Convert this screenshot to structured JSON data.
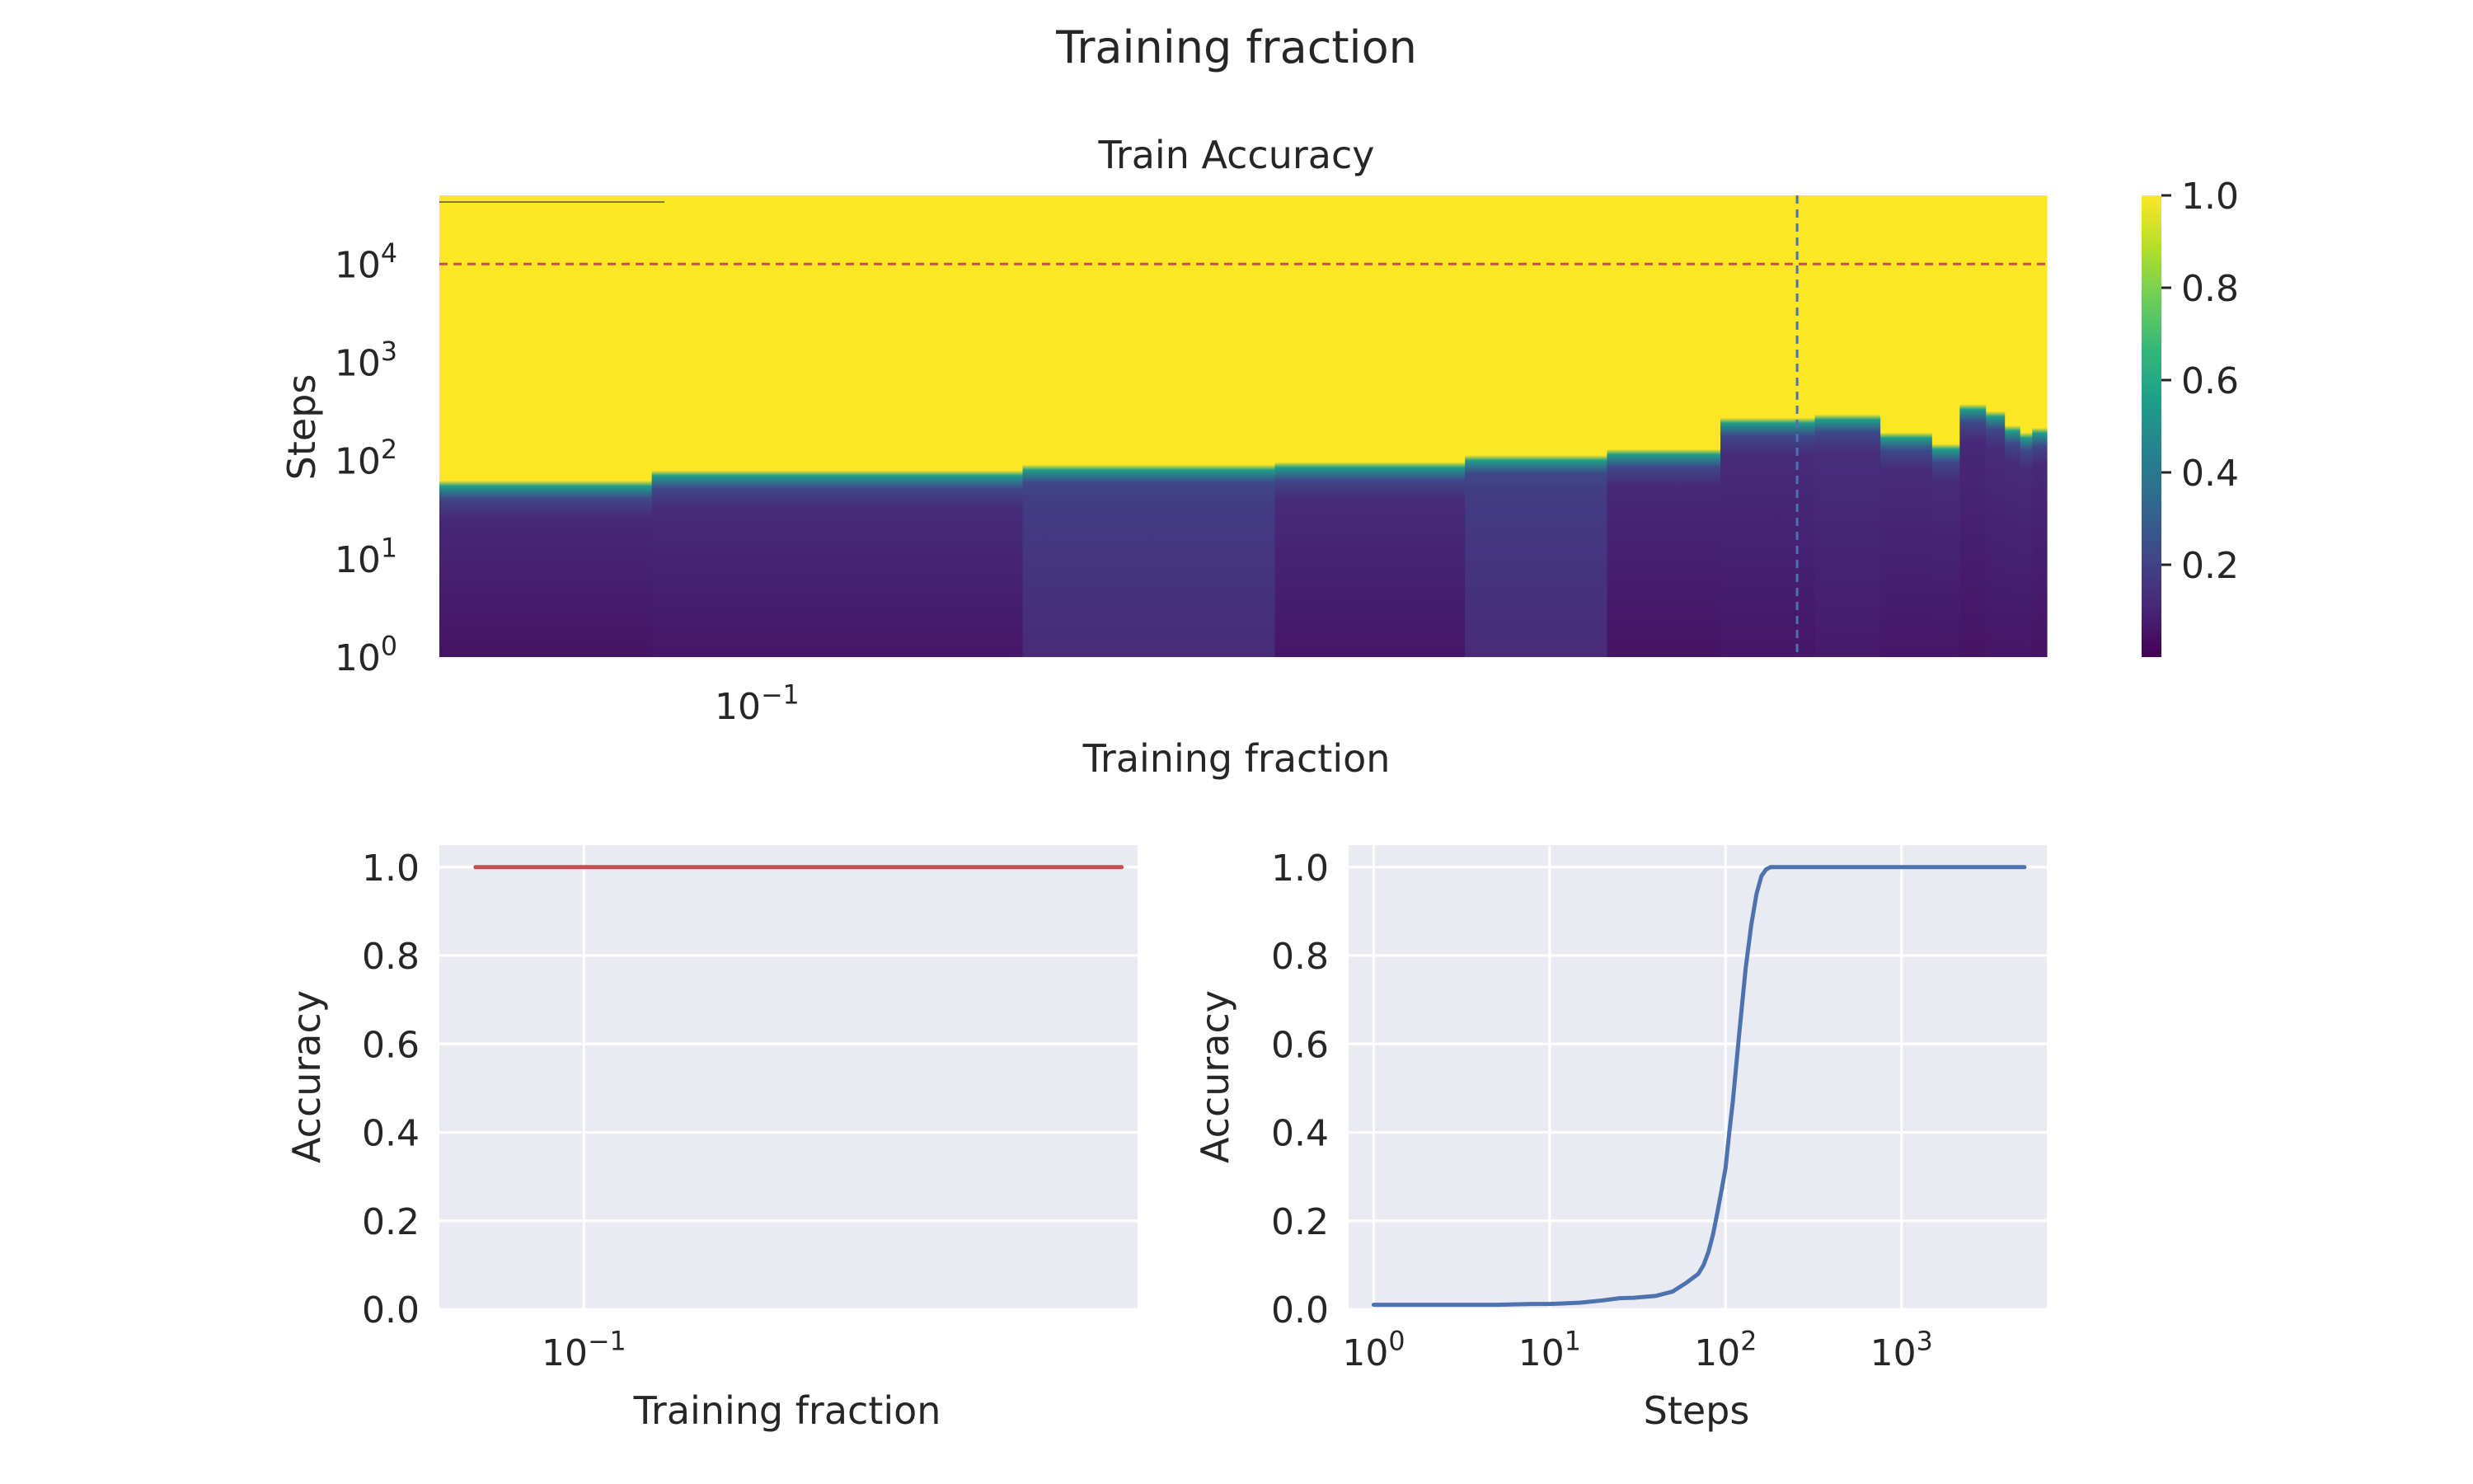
{
  "figure": {
    "suptitle": "Training fraction"
  },
  "colors": {
    "axes_face": "#eaeaf2",
    "grid": "#ffffff",
    "text": "#262626",
    "hline": "#c44e52",
    "vline": "#4c72b0",
    "line_red": "#c44e52",
    "line_blue": "#4c72b0",
    "viridis": [
      "#440154",
      "#482878",
      "#3e4989",
      "#31688e",
      "#26828e",
      "#1f9e89",
      "#35b779",
      "#6ece58",
      "#b5de2b",
      "#fde725"
    ]
  },
  "chart_data": [
    {
      "type": "heatmap",
      "title": "Train Accuracy",
      "xlabel": "Training fraction",
      "ylabel": "Steps",
      "xscale": "log",
      "yscale": "log",
      "xlim": [
        0.057,
        0.98
      ],
      "ylim": [
        1,
        50000
      ],
      "xticks": [
        {
          "value": 0.1,
          "base": "10",
          "exp": "−1"
        }
      ],
      "yticks": [
        {
          "value": 1,
          "base": "10",
          "exp": "0"
        },
        {
          "value": 10,
          "base": "10",
          "exp": "1"
        },
        {
          "value": 100,
          "base": "10",
          "exp": "2"
        },
        {
          "value": 1000,
          "base": "10",
          "exp": "3"
        },
        {
          "value": 10000,
          "base": "10",
          "exp": "4"
        }
      ],
      "hline_y": 10000,
      "vline_x": 0.63,
      "colorbar": {
        "vmin": 0.0,
        "vmax": 1.0,
        "ticks": [
          "0.2",
          "0.4",
          "0.6",
          "0.8",
          "1.0"
        ],
        "tick_values": [
          0.2,
          0.4,
          0.6,
          0.8,
          1.0
        ]
      },
      "columns": [
        {
          "x0": 0.057,
          "x1": 0.083,
          "transition_step": 55,
          "low_acc": 0.05
        },
        {
          "x0": 0.083,
          "x1": 0.16,
          "transition_step": 70,
          "low_acc": 0.06
        },
        {
          "x0": 0.16,
          "x1": 0.25,
          "transition_step": 80,
          "low_acc": 0.12
        },
        {
          "x0": 0.25,
          "x1": 0.35,
          "transition_step": 85,
          "low_acc": 0.06
        },
        {
          "x0": 0.35,
          "x1": 0.45,
          "transition_step": 100,
          "low_acc": 0.12
        },
        {
          "x0": 0.45,
          "x1": 0.55,
          "transition_step": 115,
          "low_acc": 0.05
        },
        {
          "x0": 0.55,
          "x1": 0.65,
          "transition_step": 240,
          "low_acc": 0.06
        },
        {
          "x0": 0.65,
          "x1": 0.73,
          "transition_step": 260,
          "low_acc": 0.07
        },
        {
          "x0": 0.73,
          "x1": 0.8,
          "transition_step": 170,
          "low_acc": 0.06
        },
        {
          "x0": 0.8,
          "x1": 0.84,
          "transition_step": 130,
          "low_acc": 0.06
        },
        {
          "x0": 0.84,
          "x1": 0.88,
          "transition_step": 330,
          "low_acc": 0.05
        },
        {
          "x0": 0.88,
          "x1": 0.91,
          "transition_step": 280,
          "low_acc": 0.06
        },
        {
          "x0": 0.91,
          "x1": 0.935,
          "transition_step": 200,
          "low_acc": 0.06
        },
        {
          "x0": 0.935,
          "x1": 0.955,
          "transition_step": 170,
          "low_acc": 0.06
        },
        {
          "x0": 0.955,
          "x1": 0.98,
          "transition_step": 190,
          "low_acc": 0.05
        }
      ]
    },
    {
      "type": "line",
      "xlabel": "Training fraction",
      "ylabel": "Accuracy",
      "xscale": "log",
      "xlim": [
        0.054,
        1.06
      ],
      "ylim": [
        0.0,
        1.05
      ],
      "xticks": [
        {
          "value": 0.1,
          "base": "10",
          "exp": "−1"
        }
      ],
      "yticks": [
        "0.0",
        "0.2",
        "0.4",
        "0.6",
        "0.8",
        "1.0"
      ],
      "ytick_values": [
        0,
        0.2,
        0.4,
        0.6,
        0.8,
        1.0
      ],
      "series": [
        {
          "color": "line_red",
          "x": [
            0.063,
            0.08,
            0.1,
            0.15,
            0.2,
            0.3,
            0.4,
            0.5,
            0.6,
            0.7,
            0.8,
            0.9,
            0.99
          ],
          "y": [
            1,
            1,
            1,
            1,
            1,
            1,
            1,
            1,
            1,
            1,
            1,
            1,
            1
          ]
        }
      ]
    },
    {
      "type": "line",
      "xlabel": "Steps",
      "ylabel": "Accuracy",
      "xscale": "log",
      "xlim": [
        0.72,
        6700
      ],
      "ylim": [
        0.0,
        1.05
      ],
      "xticks": [
        {
          "value": 1,
          "base": "10",
          "exp": "0"
        },
        {
          "value": 10,
          "base": "10",
          "exp": "1"
        },
        {
          "value": 100,
          "base": "10",
          "exp": "2"
        },
        {
          "value": 1000,
          "base": "10",
          "exp": "3"
        }
      ],
      "yticks": [
        "0.0",
        "0.2",
        "0.4",
        "0.6",
        "0.8",
        "1.0"
      ],
      "ytick_values": [
        0,
        0.2,
        0.4,
        0.6,
        0.8,
        1.0
      ],
      "series": [
        {
          "color": "line_blue",
          "x": [
            1,
            2,
            5,
            8,
            10,
            12,
            15,
            20,
            25,
            30,
            40,
            50,
            60,
            70,
            75,
            80,
            85,
            90,
            95,
            100,
            105,
            110,
            120,
            130,
            140,
            150,
            160,
            170,
            180,
            190,
            200,
            250,
            500,
            1000,
            5000
          ],
          "y": [
            0.01,
            0.01,
            0.01,
            0.012,
            0.012,
            0.013,
            0.015,
            0.02,
            0.025,
            0.026,
            0.03,
            0.04,
            0.06,
            0.08,
            0.1,
            0.13,
            0.17,
            0.22,
            0.27,
            0.32,
            0.4,
            0.47,
            0.63,
            0.77,
            0.87,
            0.94,
            0.98,
            0.995,
            1.0,
            1.0,
            1.0,
            1.0,
            1.0,
            1.0,
            1.0
          ]
        }
      ]
    }
  ]
}
